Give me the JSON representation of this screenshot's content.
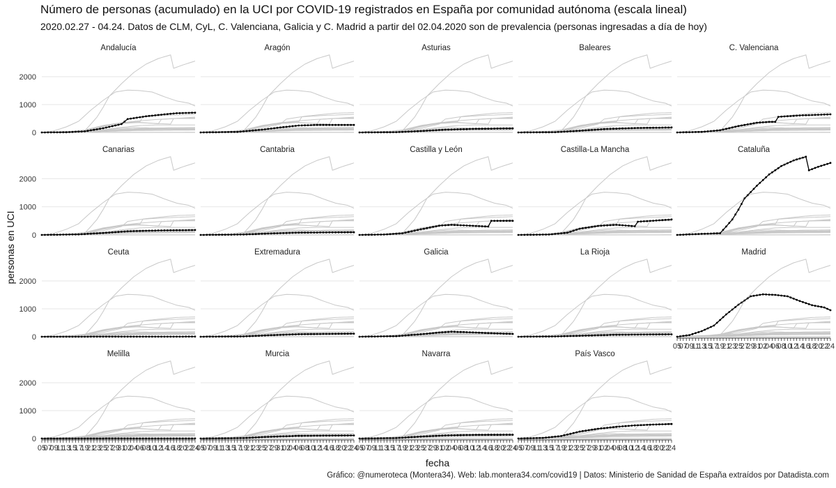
{
  "title": "Número de personas (acumulado) en la UCI por COVID-19 registrados en España por comunidad autónoma (escala lineal)",
  "subtitle": "2020.02.27 - 04.24. Datos de CLM, CyL, C. Valenciana, Galicia y C. Madrid a partir del 02.04.2020 son de prevalencia (personas ingresadas a día de hoy)",
  "caption": "Gráfico: @numeroteca (Montera34). Web: lab.montera34.com/covid19 | Datos: Ministerio de Sanidad de España extraídos por Datadista.com",
  "colors": {
    "highlight": "#000000",
    "background_lines": "#c8c8c8",
    "grid": "#e6e6e6"
  },
  "chart_data": {
    "type": "line",
    "facet": "small multiples by region",
    "xlabel": "fecha",
    "ylabel": "personas en UCI",
    "ylim": [
      0,
      2800
    ],
    "y_ticks": [
      0,
      1000,
      2000
    ],
    "x_range": [
      "2020-03-05",
      "2020-04-24"
    ],
    "x_tick_labels": [
      "05",
      "07",
      "09",
      "11",
      "13",
      "15",
      "17",
      "19",
      "21",
      "23",
      "25",
      "27",
      "29",
      "31",
      "02",
      "04",
      "06",
      "08",
      "10",
      "12",
      "14",
      "16",
      "18",
      "20",
      "22",
      "24"
    ],
    "grid": true,
    "legend": "none",
    "series": [
      {
        "name": "Andalucía",
        "values": [
          {
            "d": "2020-03-05",
            "v": 0
          },
          {
            "d": "2020-03-13",
            "v": 8
          },
          {
            "d": "2020-03-19",
            "v": 40
          },
          {
            "d": "2020-03-25",
            "v": 150
          },
          {
            "d": "2020-03-31",
            "v": 300
          },
          {
            "d": "2020-04-02",
            "v": 480
          },
          {
            "d": "2020-04-08",
            "v": 580
          },
          {
            "d": "2020-04-14",
            "v": 650
          },
          {
            "d": "2020-04-18",
            "v": 690
          },
          {
            "d": "2020-04-24",
            "v": 710
          }
        ]
      },
      {
        "name": "Aragón",
        "values": [
          {
            "d": "2020-03-05",
            "v": 0
          },
          {
            "d": "2020-03-17",
            "v": 20
          },
          {
            "d": "2020-03-25",
            "v": 100
          },
          {
            "d": "2020-03-31",
            "v": 180
          },
          {
            "d": "2020-04-06",
            "v": 250
          },
          {
            "d": "2020-04-12",
            "v": 270
          },
          {
            "d": "2020-04-18",
            "v": 270
          },
          {
            "d": "2020-04-24",
            "v": 270
          }
        ]
      },
      {
        "name": "Asturias",
        "values": [
          {
            "d": "2020-03-05",
            "v": 0
          },
          {
            "d": "2020-03-17",
            "v": 10
          },
          {
            "d": "2020-03-25",
            "v": 50
          },
          {
            "d": "2020-04-02",
            "v": 100
          },
          {
            "d": "2020-04-12",
            "v": 130
          },
          {
            "d": "2020-04-24",
            "v": 145
          }
        ]
      },
      {
        "name": "Baleares",
        "values": [
          {
            "d": "2020-03-05",
            "v": 0
          },
          {
            "d": "2020-03-17",
            "v": 10
          },
          {
            "d": "2020-03-25",
            "v": 60
          },
          {
            "d": "2020-04-02",
            "v": 120
          },
          {
            "d": "2020-04-12",
            "v": 160
          },
          {
            "d": "2020-04-24",
            "v": 180
          }
        ]
      },
      {
        "name": "C. Valenciana",
        "values": [
          {
            "d": "2020-03-05",
            "v": 0
          },
          {
            "d": "2020-03-13",
            "v": 20
          },
          {
            "d": "2020-03-19",
            "v": 80
          },
          {
            "d": "2020-03-25",
            "v": 230
          },
          {
            "d": "2020-03-31",
            "v": 350
          },
          {
            "d": "2020-04-04",
            "v": 380
          },
          {
            "d": "2020-04-06",
            "v": 380
          },
          {
            "d": "2020-04-07",
            "v": 560
          },
          {
            "d": "2020-04-14",
            "v": 610
          },
          {
            "d": "2020-04-24",
            "v": 650
          }
        ]
      },
      {
        "name": "Canarias",
        "values": [
          {
            "d": "2020-03-05",
            "v": 0
          },
          {
            "d": "2020-03-17",
            "v": 20
          },
          {
            "d": "2020-03-25",
            "v": 70
          },
          {
            "d": "2020-04-02",
            "v": 130
          },
          {
            "d": "2020-04-12",
            "v": 160
          },
          {
            "d": "2020-04-24",
            "v": 175
          }
        ]
      },
      {
        "name": "Cantabria",
        "values": [
          {
            "d": "2020-03-05",
            "v": 0
          },
          {
            "d": "2020-03-19",
            "v": 15
          },
          {
            "d": "2020-03-27",
            "v": 50
          },
          {
            "d": "2020-04-06",
            "v": 80
          },
          {
            "d": "2020-04-24",
            "v": 95
          }
        ]
      },
      {
        "name": "Castilla y León",
        "values": [
          {
            "d": "2020-03-05",
            "v": 0
          },
          {
            "d": "2020-03-13",
            "v": 15
          },
          {
            "d": "2020-03-19",
            "v": 60
          },
          {
            "d": "2020-03-25",
            "v": 200
          },
          {
            "d": "2020-03-31",
            "v": 330
          },
          {
            "d": "2020-04-04",
            "v": 360
          },
          {
            "d": "2020-04-10",
            "v": 330
          },
          {
            "d": "2020-04-16",
            "v": 300
          },
          {
            "d": "2020-04-17",
            "v": 500
          },
          {
            "d": "2020-04-24",
            "v": 500
          }
        ]
      },
      {
        "name": "Castilla-La Mancha",
        "values": [
          {
            "d": "2020-03-05",
            "v": 0
          },
          {
            "d": "2020-03-15",
            "v": 15
          },
          {
            "d": "2020-03-21",
            "v": 80
          },
          {
            "d": "2020-03-25",
            "v": 220
          },
          {
            "d": "2020-03-31",
            "v": 320
          },
          {
            "d": "2020-04-06",
            "v": 360
          },
          {
            "d": "2020-04-12",
            "v": 310
          },
          {
            "d": "2020-04-13",
            "v": 470
          },
          {
            "d": "2020-04-24",
            "v": 550
          }
        ]
      },
      {
        "name": "Cataluña",
        "values": [
          {
            "d": "2020-03-05",
            "v": 0
          },
          {
            "d": "2020-03-13",
            "v": 40
          },
          {
            "d": "2020-03-19",
            "v": 60
          },
          {
            "d": "2020-03-21",
            "v": 300
          },
          {
            "d": "2020-03-23",
            "v": 550
          },
          {
            "d": "2020-03-25",
            "v": 900
          },
          {
            "d": "2020-03-27",
            "v": 1300
          },
          {
            "d": "2020-03-31",
            "v": 1750
          },
          {
            "d": "2020-04-04",
            "v": 2150
          },
          {
            "d": "2020-04-08",
            "v": 2450
          },
          {
            "d": "2020-04-12",
            "v": 2650
          },
          {
            "d": "2020-04-16",
            "v": 2780
          },
          {
            "d": "2020-04-17",
            "v": 2300
          },
          {
            "d": "2020-04-20",
            "v": 2420
          },
          {
            "d": "2020-04-24",
            "v": 2560
          }
        ]
      },
      {
        "name": "Ceuta",
        "values": [
          {
            "d": "2020-03-05",
            "v": 0
          },
          {
            "d": "2020-04-24",
            "v": 4
          }
        ]
      },
      {
        "name": "Extremadura",
        "values": [
          {
            "d": "2020-03-05",
            "v": 0
          },
          {
            "d": "2020-03-19",
            "v": 10
          },
          {
            "d": "2020-03-27",
            "v": 50
          },
          {
            "d": "2020-04-06",
            "v": 90
          },
          {
            "d": "2020-04-24",
            "v": 110
          }
        ]
      },
      {
        "name": "Galicia",
        "values": [
          {
            "d": "2020-03-05",
            "v": 0
          },
          {
            "d": "2020-03-17",
            "v": 20
          },
          {
            "d": "2020-03-25",
            "v": 90
          },
          {
            "d": "2020-03-31",
            "v": 150
          },
          {
            "d": "2020-04-04",
            "v": 180
          },
          {
            "d": "2020-04-10",
            "v": 160
          },
          {
            "d": "2020-04-16",
            "v": 130
          },
          {
            "d": "2020-04-24",
            "v": 100
          }
        ]
      },
      {
        "name": "La Rioja",
        "values": [
          {
            "d": "2020-03-05",
            "v": 0
          },
          {
            "d": "2020-03-17",
            "v": 10
          },
          {
            "d": "2020-03-27",
            "v": 40
          },
          {
            "d": "2020-04-06",
            "v": 70
          },
          {
            "d": "2020-04-24",
            "v": 85
          }
        ]
      },
      {
        "name": "Madrid",
        "values": [
          {
            "d": "2020-03-05",
            "v": 0
          },
          {
            "d": "2020-03-09",
            "v": 60
          },
          {
            "d": "2020-03-13",
            "v": 200
          },
          {
            "d": "2020-03-17",
            "v": 400
          },
          {
            "d": "2020-03-21",
            "v": 800
          },
          {
            "d": "2020-03-25",
            "v": 1150
          },
          {
            "d": "2020-03-29",
            "v": 1450
          },
          {
            "d": "2020-04-02",
            "v": 1520
          },
          {
            "d": "2020-04-06",
            "v": 1500
          },
          {
            "d": "2020-04-10",
            "v": 1450
          },
          {
            "d": "2020-04-14",
            "v": 1280
          },
          {
            "d": "2020-04-18",
            "v": 1130
          },
          {
            "d": "2020-04-22",
            "v": 1050
          },
          {
            "d": "2020-04-24",
            "v": 950
          }
        ]
      },
      {
        "name": "Melilla",
        "values": [
          {
            "d": "2020-03-05",
            "v": 0
          },
          {
            "d": "2020-04-24",
            "v": 3
          }
        ]
      },
      {
        "name": "Murcia",
        "values": [
          {
            "d": "2020-03-05",
            "v": 0
          },
          {
            "d": "2020-03-19",
            "v": 15
          },
          {
            "d": "2020-03-27",
            "v": 60
          },
          {
            "d": "2020-04-06",
            "v": 95
          },
          {
            "d": "2020-04-24",
            "v": 110
          }
        ]
      },
      {
        "name": "Navarra",
        "values": [
          {
            "d": "2020-03-05",
            "v": 0
          },
          {
            "d": "2020-03-17",
            "v": 15
          },
          {
            "d": "2020-03-25",
            "v": 70
          },
          {
            "d": "2020-04-02",
            "v": 110
          },
          {
            "d": "2020-04-12",
            "v": 130
          },
          {
            "d": "2020-04-24",
            "v": 135
          }
        ]
      },
      {
        "name": "País Vasco",
        "values": [
          {
            "d": "2020-03-05",
            "v": 0
          },
          {
            "d": "2020-03-13",
            "v": 20
          },
          {
            "d": "2020-03-19",
            "v": 90
          },
          {
            "d": "2020-03-25",
            "v": 250
          },
          {
            "d": "2020-03-31",
            "v": 350
          },
          {
            "d": "2020-04-06",
            "v": 420
          },
          {
            "d": "2020-04-12",
            "v": 470
          },
          {
            "d": "2020-04-18",
            "v": 500
          },
          {
            "d": "2020-04-24",
            "v": 520
          }
        ]
      }
    ]
  }
}
